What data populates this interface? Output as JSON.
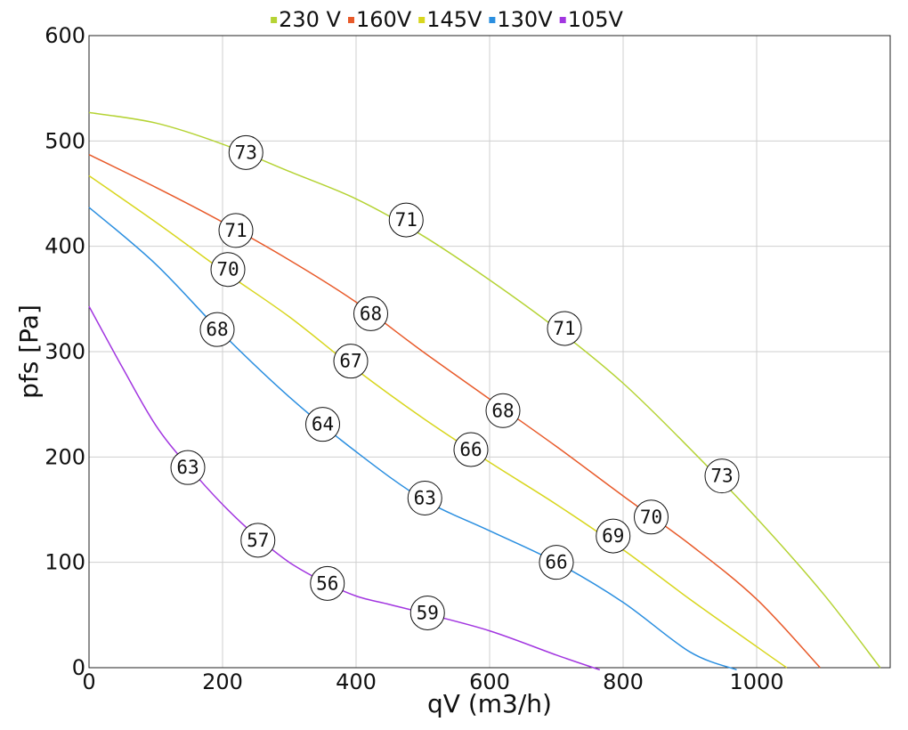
{
  "chart_data": {
    "type": "line",
    "title": "",
    "xlabel": "qV (m3/h)",
    "ylabel": "pfs [Pa]",
    "xlim": [
      0,
      1200
    ],
    "ylim": [
      0,
      600
    ],
    "x_ticks": [
      "0",
      "200",
      "400",
      "600",
      "800",
      "1000"
    ],
    "y_ticks": [
      "0",
      "100",
      "200",
      "300",
      "400",
      "500",
      "600"
    ],
    "x_tick_values": [
      0,
      200,
      400,
      600,
      800,
      1000
    ],
    "y_tick_values": [
      0,
      100,
      200,
      300,
      400,
      500,
      600
    ],
    "grid": true,
    "legend_position": "top",
    "series": [
      {
        "name": "230 V",
        "color": "#b5d334",
        "points": [
          [
            0,
            527
          ],
          [
            100,
            517
          ],
          [
            200,
            497
          ],
          [
            300,
            471
          ],
          [
            400,
            445
          ],
          [
            500,
            410
          ],
          [
            600,
            368
          ],
          [
            700,
            322
          ],
          [
            800,
            270
          ],
          [
            900,
            208
          ],
          [
            1000,
            142
          ],
          [
            1100,
            70
          ],
          [
            1185,
            0
          ]
        ],
        "labels": [
          {
            "x": 235,
            "y": 489,
            "text": "73"
          },
          {
            "x": 475,
            "y": 425,
            "text": "71"
          },
          {
            "x": 712,
            "y": 322,
            "text": "71"
          },
          {
            "x": 948,
            "y": 182,
            "text": "73"
          }
        ]
      },
      {
        "name": "160V",
        "color": "#e85a2a",
        "points": [
          [
            0,
            487
          ],
          [
            100,
            456
          ],
          [
            200,
            423
          ],
          [
            300,
            387
          ],
          [
            400,
            347
          ],
          [
            500,
            300
          ],
          [
            600,
            255
          ],
          [
            700,
            210
          ],
          [
            800,
            163
          ],
          [
            900,
            117
          ],
          [
            1000,
            65
          ],
          [
            1095,
            0
          ]
        ],
        "labels": [
          {
            "x": 220,
            "y": 415,
            "text": "71"
          },
          {
            "x": 422,
            "y": 336,
            "text": "68"
          },
          {
            "x": 620,
            "y": 244,
            "text": "68"
          },
          {
            "x": 842,
            "y": 143,
            "text": "70"
          }
        ]
      },
      {
        "name": "145V",
        "color": "#d8d61e",
        "points": [
          [
            0,
            467
          ],
          [
            100,
            423
          ],
          [
            200,
            377
          ],
          [
            300,
            333
          ],
          [
            400,
            283
          ],
          [
            500,
            237
          ],
          [
            600,
            195
          ],
          [
            700,
            155
          ],
          [
            800,
            112
          ],
          [
            900,
            65
          ],
          [
            1000,
            20
          ],
          [
            1045,
            0
          ]
        ],
        "labels": [
          {
            "x": 208,
            "y": 378,
            "text": "70"
          },
          {
            "x": 392,
            "y": 291,
            "text": "67"
          },
          {
            "x": 572,
            "y": 207,
            "text": "66"
          },
          {
            "x": 785,
            "y": 125,
            "text": "69"
          }
        ]
      },
      {
        "name": "130V",
        "color": "#2b8fe0",
        "points": [
          [
            0,
            437
          ],
          [
            100,
            383
          ],
          [
            200,
            317
          ],
          [
            300,
            257
          ],
          [
            400,
            205
          ],
          [
            500,
            160
          ],
          [
            600,
            130
          ],
          [
            700,
            100
          ],
          [
            800,
            62
          ],
          [
            900,
            15
          ],
          [
            970,
            -2
          ]
        ],
        "labels": [
          {
            "x": 192,
            "y": 321,
            "text": "68"
          },
          {
            "x": 350,
            "y": 231,
            "text": "64"
          },
          {
            "x": 503,
            "y": 161,
            "text": "63"
          },
          {
            "x": 700,
            "y": 100,
            "text": "66"
          }
        ]
      },
      {
        "name": "105V",
        "color": "#a236e0",
        "points": [
          [
            0,
            343
          ],
          [
            50,
            285
          ],
          [
            100,
            230
          ],
          [
            150,
            190
          ],
          [
            200,
            155
          ],
          [
            250,
            125
          ],
          [
            300,
            100
          ],
          [
            350,
            82
          ],
          [
            400,
            68
          ],
          [
            450,
            60
          ],
          [
            500,
            52
          ],
          [
            600,
            35
          ],
          [
            700,
            12
          ],
          [
            765,
            -2
          ]
        ],
        "labels": [
          {
            "x": 148,
            "y": 190,
            "text": "63"
          },
          {
            "x": 253,
            "y": 121,
            "text": "57"
          },
          {
            "x": 357,
            "y": 80,
            "text": "56"
          },
          {
            "x": 507,
            "y": 52,
            "text": "59"
          }
        ]
      }
    ]
  }
}
